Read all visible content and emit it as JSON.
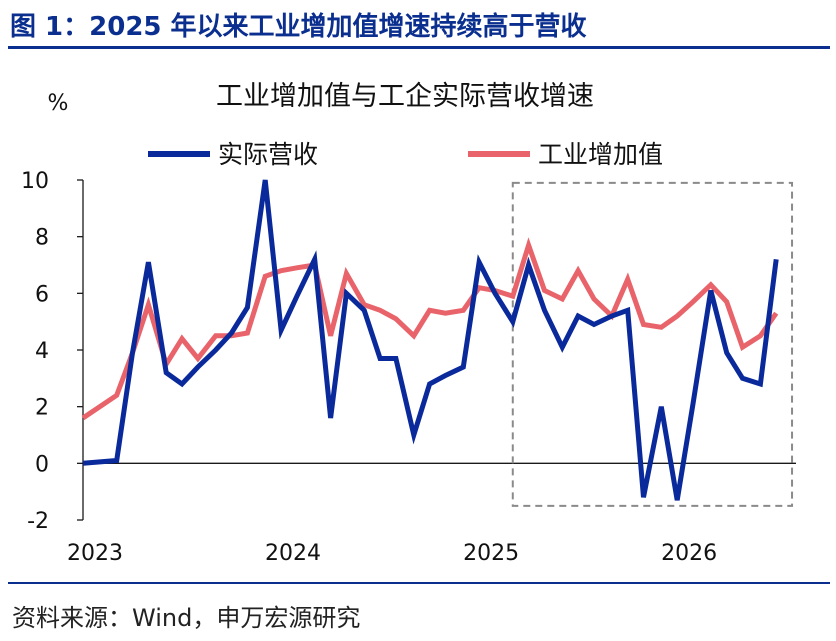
{
  "figure_title": "图 1：2025 年以来工业增加值增速持续高于营收",
  "source": "资料来源：Wind，申万宏源研究",
  "colors": {
    "accent": "#0b2f8f",
    "revenue": "#0a2a9b",
    "value_added": "#e8646a",
    "box": "#8a8a8a"
  },
  "chart_data": {
    "type": "line",
    "title": "工业增加值与工企实际营收增速",
    "ylabel": "%",
    "xlabel": "",
    "ylim": [
      -2,
      10
    ],
    "yticks": [
      "-2",
      "0",
      "2",
      "4",
      "6",
      "8",
      "10"
    ],
    "xlim": [
      2023.0,
      2026.6
    ],
    "xticks": [
      "2023",
      "2024",
      "2025",
      "2026"
    ],
    "legend_position": "top",
    "grid": false,
    "highlight_box": {
      "x": [
        2025.17,
        2026.58
      ],
      "y": [
        -1.5,
        9.9
      ],
      "style": "dashed"
    },
    "series": [
      {
        "name": "实际营收",
        "color": "#0a2a9b",
        "points": [
          [
            2023.0,
            0.0
          ],
          [
            2023.17,
            0.1
          ],
          [
            2023.25,
            3.9
          ],
          [
            2023.33,
            7.1
          ],
          [
            2023.42,
            3.2
          ],
          [
            2023.5,
            2.8
          ],
          [
            2023.58,
            3.4
          ],
          [
            2023.67,
            4.0
          ],
          [
            2023.75,
            4.6
          ],
          [
            2023.83,
            5.5
          ],
          [
            2023.92,
            10.0
          ],
          [
            2024.0,
            4.7
          ],
          [
            2024.08,
            5.9
          ],
          [
            2024.17,
            7.2
          ],
          [
            2024.25,
            1.6
          ],
          [
            2024.33,
            6.0
          ],
          [
            2024.42,
            5.4
          ],
          [
            2024.5,
            3.7
          ],
          [
            2024.58,
            3.7
          ],
          [
            2024.67,
            1.0
          ],
          [
            2024.75,
            2.8
          ],
          [
            2024.83,
            3.1
          ],
          [
            2024.92,
            3.4
          ],
          [
            2025.0,
            7.1
          ],
          [
            2025.08,
            6.0
          ],
          [
            2025.17,
            5.0
          ],
          [
            2025.25,
            7.0
          ],
          [
            2025.33,
            5.4
          ],
          [
            2025.42,
            4.1
          ],
          [
            2025.5,
            5.2
          ],
          [
            2025.58,
            4.9
          ],
          [
            2025.67,
            5.2
          ],
          [
            2025.75,
            5.4
          ],
          [
            2025.83,
            -1.2
          ],
          [
            2025.92,
            2.0
          ],
          [
            2026.0,
            -1.3
          ],
          [
            2026.08,
            2.1
          ],
          [
            2026.17,
            6.1
          ],
          [
            2026.25,
            3.9
          ],
          [
            2026.33,
            3.0
          ],
          [
            2026.42,
            2.8
          ],
          [
            2026.5,
            7.2
          ]
        ]
      },
      {
        "name": "工业增加值",
        "color": "#e8646a",
        "points": [
          [
            2023.0,
            1.6
          ],
          [
            2023.17,
            2.4
          ],
          [
            2023.25,
            3.9
          ],
          [
            2023.33,
            5.6
          ],
          [
            2023.42,
            3.5
          ],
          [
            2023.5,
            4.4
          ],
          [
            2023.58,
            3.7
          ],
          [
            2023.67,
            4.5
          ],
          [
            2023.75,
            4.5
          ],
          [
            2023.83,
            4.6
          ],
          [
            2023.92,
            6.6
          ],
          [
            2024.0,
            6.8
          ],
          [
            2024.08,
            6.9
          ],
          [
            2024.17,
            7.0
          ],
          [
            2024.25,
            4.5
          ],
          [
            2024.33,
            6.7
          ],
          [
            2024.42,
            5.6
          ],
          [
            2024.5,
            5.4
          ],
          [
            2024.58,
            5.1
          ],
          [
            2024.67,
            4.5
          ],
          [
            2024.75,
            5.4
          ],
          [
            2024.83,
            5.3
          ],
          [
            2024.92,
            5.4
          ],
          [
            2025.0,
            6.2
          ],
          [
            2025.08,
            6.1
          ],
          [
            2025.17,
            5.9
          ],
          [
            2025.25,
            7.7
          ],
          [
            2025.33,
            6.1
          ],
          [
            2025.42,
            5.8
          ],
          [
            2025.5,
            6.8
          ],
          [
            2025.58,
            5.8
          ],
          [
            2025.67,
            5.2
          ],
          [
            2025.75,
            6.5
          ],
          [
            2025.83,
            4.9
          ],
          [
            2025.92,
            4.8
          ],
          [
            2026.0,
            5.2
          ],
          [
            2026.08,
            5.7
          ],
          [
            2026.17,
            6.3
          ],
          [
            2026.25,
            5.7
          ],
          [
            2026.33,
            4.1
          ],
          [
            2026.42,
            4.5
          ],
          [
            2026.5,
            5.3
          ]
        ]
      }
    ]
  }
}
